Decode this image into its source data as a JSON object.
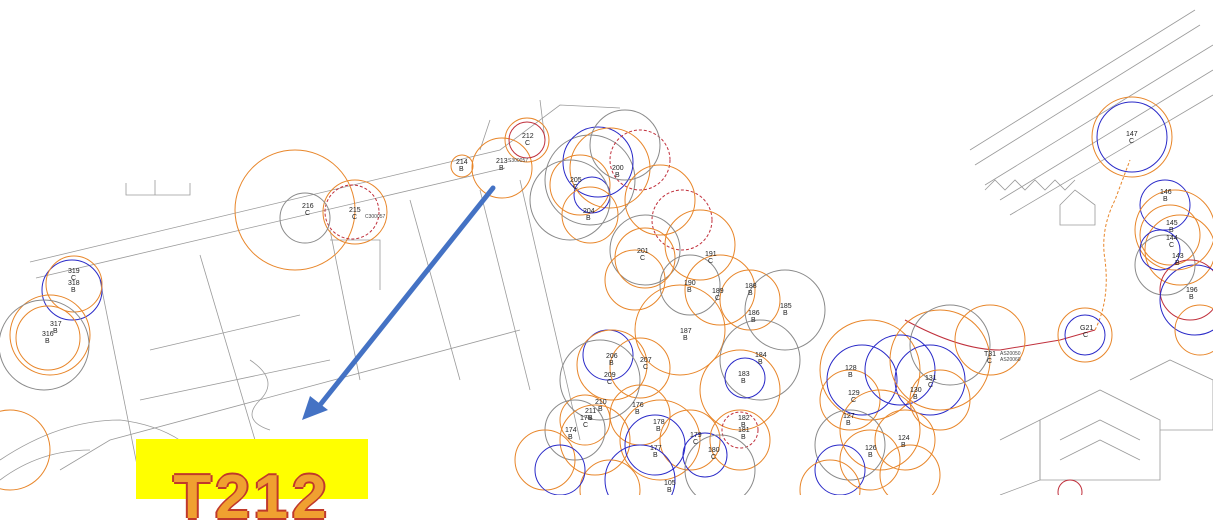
{
  "colors": {
    "orange": "#e8862a",
    "blue": "#2a2ac8",
    "red": "#c0303c",
    "grey": "#8a8a8a",
    "arrow": "#4472c4",
    "tag_background": "#ffff00"
  },
  "callout_tag": {
    "text": "T212"
  },
  "tree_labels": [
    {
      "id": "212",
      "code": "C"
    },
    {
      "id": "214",
      "code": "B"
    },
    {
      "id": "213",
      "code": "B"
    },
    {
      "id": "215",
      "code": "C"
    },
    {
      "id": "216",
      "code": "C"
    },
    {
      "id": "319",
      "code": "C"
    },
    {
      "id": "318",
      "code": "B"
    },
    {
      "id": "317",
      "code": "B"
    },
    {
      "id": "316",
      "code": "B"
    },
    {
      "id": "200",
      "code": "B"
    },
    {
      "id": "201",
      "code": "C"
    },
    {
      "id": "191",
      "code": "C"
    },
    {
      "id": "190",
      "code": "B"
    },
    {
      "id": "189",
      "code": "C"
    },
    {
      "id": "188",
      "code": "B"
    },
    {
      "id": "187",
      "code": "B"
    },
    {
      "id": "186",
      "code": "B"
    },
    {
      "id": "185",
      "code": "B"
    },
    {
      "id": "184",
      "code": "B"
    },
    {
      "id": "183",
      "code": "B"
    },
    {
      "id": "182",
      "code": "B"
    },
    {
      "id": "181",
      "code": "B"
    },
    {
      "id": "180",
      "code": "C"
    },
    {
      "id": "176",
      "code": "B"
    },
    {
      "id": "177",
      "code": "B"
    },
    {
      "id": "178",
      "code": "B"
    },
    {
      "id": "179",
      "code": "C"
    },
    {
      "id": "175",
      "code": "C"
    },
    {
      "id": "174",
      "code": "B"
    },
    {
      "id": "210",
      "code": "B"
    },
    {
      "id": "211",
      "code": "B"
    },
    {
      "id": "209",
      "code": "C"
    },
    {
      "id": "207",
      "code": "C"
    },
    {
      "id": "206",
      "code": "B"
    },
    {
      "id": "205",
      "code": "C"
    },
    {
      "id": "204",
      "code": "B"
    },
    {
      "id": "129",
      "code": "C"
    },
    {
      "id": "128",
      "code": "B"
    },
    {
      "id": "127",
      "code": "B"
    },
    {
      "id": "126",
      "code": "B"
    },
    {
      "id": "124",
      "code": "B"
    },
    {
      "id": "131",
      "code": "C"
    },
    {
      "id": "130",
      "code": "B"
    },
    {
      "id": "G21",
      "code": "C"
    },
    {
      "id": "T31",
      "code": "C"
    },
    {
      "id": "147",
      "code": "C"
    },
    {
      "id": "146",
      "code": "B"
    },
    {
      "id": "145",
      "code": "B"
    },
    {
      "id": "144",
      "code": "C"
    },
    {
      "id": "143",
      "code": "B"
    },
    {
      "id": "196",
      "code": "B"
    },
    {
      "id": "105",
      "code": "B"
    }
  ],
  "small_notes": [
    {
      "text": "S300057"
    },
    {
      "text": "C300057"
    },
    {
      "text": "AS20050"
    },
    {
      "text": "AS20060"
    }
  ]
}
